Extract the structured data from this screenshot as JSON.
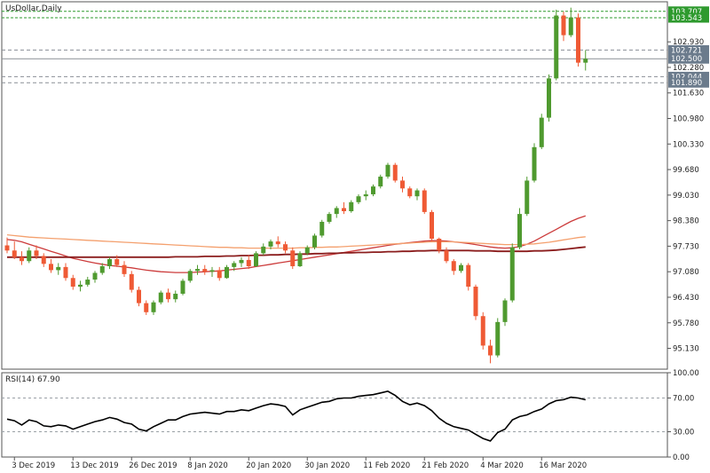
{
  "title": "UsDollar,Daily",
  "colors": {
    "bull": "#4f9a2f",
    "bear": "#ef5a35",
    "frame": "#555555",
    "ma_fast": "#cc3b3b",
    "ma_mid": "#f4a06e",
    "ma_slow": "#8b1d1d",
    "green_tag": "#2e9a2e",
    "gray_tag": "#6b7b8c",
    "rsi_line": "#000000"
  },
  "chart_data": [
    {
      "type": "candlestick",
      "name": "price",
      "price_axis": {
        "min": 94.6,
        "max": 103.95,
        "ticks": [
          "102.930",
          "102.280",
          "101.630",
          "100.980",
          "100.330",
          "99.680",
          "99.030",
          "98.380",
          "97.730",
          "97.080",
          "96.430",
          "95.780",
          "95.130"
        ]
      },
      "price_tags": [
        {
          "value": 103.707,
          "label": "103.707",
          "style": "green",
          "line": "green-dashed"
        },
        {
          "value": 103.543,
          "label": "103.543",
          "style": "green",
          "line": "green-dashed"
        },
        {
          "value": 102.721,
          "label": "102.721",
          "style": "gray",
          "line": "gray-dashed"
        },
        {
          "value": 102.5,
          "label": "102.500",
          "style": "gray",
          "line": "gray-solid"
        },
        {
          "value": 102.044,
          "label": "102.044",
          "style": "gray",
          "line": "gray-dashed"
        },
        {
          "value": 101.89,
          "label": "101.890",
          "style": "gray",
          "line": "gray-dashed"
        }
      ],
      "dates": [
        "3 Dec 2019",
        "13 Dec 2019",
        "26 Dec 2019",
        "8 Jan 2020",
        "20 Jan 2020",
        "30 Jan 2020",
        "11 Feb 2020",
        "21 Feb 2020",
        "4 Mar 2020",
        "16 Mar 2020"
      ],
      "date_index": [
        1,
        9,
        17,
        25,
        33,
        41,
        49,
        57,
        65,
        73
      ],
      "ohlc": [
        [
          97.75,
          97.95,
          97.55,
          97.62
        ],
        [
          97.62,
          97.85,
          97.4,
          97.45
        ],
        [
          97.45,
          97.6,
          97.25,
          97.35
        ],
        [
          97.35,
          97.7,
          97.3,
          97.62
        ],
        [
          97.62,
          97.75,
          97.4,
          97.48
        ],
        [
          97.48,
          97.55,
          97.2,
          97.28
        ],
        [
          97.28,
          97.4,
          97.05,
          97.12
        ],
        [
          97.12,
          97.3,
          97.0,
          97.2
        ],
        [
          97.2,
          97.3,
          96.85,
          96.92
        ],
        [
          96.92,
          97.0,
          96.62,
          96.7
        ],
        [
          96.7,
          96.85,
          96.58,
          96.75
        ],
        [
          96.75,
          96.95,
          96.7,
          96.88
        ],
        [
          96.88,
          97.1,
          96.8,
          97.05
        ],
        [
          97.05,
          97.3,
          97.0,
          97.22
        ],
        [
          97.22,
          97.45,
          97.15,
          97.4
        ],
        [
          97.4,
          97.5,
          97.2,
          97.25
        ],
        [
          97.25,
          97.35,
          96.95,
          97.02
        ],
        [
          97.02,
          97.1,
          96.55,
          96.62
        ],
        [
          96.62,
          96.7,
          96.2,
          96.28
        ],
        [
          96.28,
          96.35,
          95.98,
          96.05
        ],
        [
          96.05,
          96.35,
          95.98,
          96.3
        ],
        [
          96.3,
          96.6,
          96.25,
          96.55
        ],
        [
          96.55,
          96.65,
          96.3,
          96.38
        ],
        [
          96.38,
          96.6,
          96.3,
          96.52
        ],
        [
          96.52,
          96.9,
          96.48,
          96.85
        ],
        [
          96.85,
          97.15,
          96.8,
          97.1
        ],
        [
          97.1,
          97.25,
          97.0,
          97.15
        ],
        [
          97.15,
          97.25,
          97.0,
          97.08
        ],
        [
          97.08,
          97.2,
          96.95,
          97.12
        ],
        [
          97.12,
          97.2,
          96.85,
          96.92
        ],
        [
          96.92,
          97.25,
          96.9,
          97.2
        ],
        [
          97.2,
          97.35,
          97.1,
          97.3
        ],
        [
          97.3,
          97.45,
          97.2,
          97.38
        ],
        [
          97.38,
          97.5,
          97.15,
          97.22
        ],
        [
          97.22,
          97.6,
          97.2,
          97.55
        ],
        [
          97.55,
          97.8,
          97.5,
          97.72
        ],
        [
          97.72,
          97.9,
          97.65,
          97.85
        ],
        [
          97.85,
          97.98,
          97.7,
          97.78
        ],
        [
          97.78,
          97.85,
          97.55,
          97.62
        ],
        [
          97.62,
          97.7,
          97.15,
          97.22
        ],
        [
          97.22,
          97.6,
          97.2,
          97.55
        ],
        [
          97.55,
          97.75,
          97.5,
          97.7
        ],
        [
          97.7,
          98.05,
          97.65,
          98.0
        ],
        [
          98.0,
          98.4,
          97.95,
          98.35
        ],
        [
          98.35,
          98.6,
          98.3,
          98.55
        ],
        [
          98.55,
          98.75,
          98.45,
          98.7
        ],
        [
          98.7,
          98.85,
          98.55,
          98.62
        ],
        [
          98.62,
          98.9,
          98.58,
          98.85
        ],
        [
          98.85,
          99.05,
          98.8,
          99.0
        ],
        [
          99.0,
          99.15,
          98.9,
          99.05
        ],
        [
          99.05,
          99.3,
          99.0,
          99.25
        ],
        [
          99.25,
          99.55,
          99.2,
          99.5
        ],
        [
          99.5,
          99.85,
          99.45,
          99.8
        ],
        [
          99.8,
          99.85,
          99.35,
          99.4
        ],
        [
          99.4,
          99.5,
          99.1,
          99.2
        ],
        [
          99.2,
          99.25,
          98.95,
          99.0
        ],
        [
          99.0,
          99.2,
          98.9,
          99.15
        ],
        [
          99.15,
          99.2,
          98.55,
          98.6
        ],
        [
          98.6,
          98.65,
          97.85,
          97.92
        ],
        [
          97.92,
          97.95,
          97.55,
          97.62
        ],
        [
          97.62,
          97.7,
          97.3,
          97.35
        ],
        [
          97.35,
          97.4,
          97.0,
          97.1
        ],
        [
          97.1,
          97.3,
          97.05,
          97.25
        ],
        [
          97.25,
          97.3,
          96.6,
          96.7
        ],
        [
          96.7,
          96.75,
          95.85,
          95.95
        ],
        [
          95.95,
          96.05,
          95.1,
          95.2
        ],
        [
          95.2,
          95.35,
          94.75,
          94.95
        ],
        [
          94.95,
          95.9,
          94.9,
          95.8
        ],
        [
          95.8,
          96.4,
          95.7,
          96.35
        ],
        [
          96.35,
          97.8,
          96.3,
          97.7
        ],
        [
          97.7,
          98.7,
          97.65,
          98.55
        ],
        [
          98.55,
          99.5,
          98.5,
          99.4
        ],
        [
          99.4,
          100.35,
          99.35,
          100.25
        ],
        [
          100.25,
          101.1,
          100.2,
          101.0
        ],
        [
          101.0,
          102.1,
          100.9,
          102.0
        ],
        [
          102.0,
          103.75,
          101.95,
          103.6
        ],
        [
          103.6,
          103.7,
          102.95,
          103.1
        ],
        [
          103.1,
          103.8,
          103.05,
          103.55
        ],
        [
          103.55,
          103.65,
          102.3,
          102.4
        ],
        [
          102.4,
          102.72,
          102.2,
          102.5
        ]
      ],
      "moving_averages": [
        {
          "color_key": "ma_fast",
          "values": [
            97.9,
            97.88,
            97.84,
            97.78,
            97.72,
            97.66,
            97.6,
            97.54,
            97.48,
            97.42,
            97.38,
            97.34,
            97.3,
            97.27,
            97.24,
            97.22,
            97.2,
            97.18,
            97.15,
            97.12,
            97.1,
            97.08,
            97.07,
            97.06,
            97.06,
            97.06,
            97.07,
            97.08,
            97.09,
            97.1,
            97.12,
            97.14,
            97.16,
            97.18,
            97.21,
            97.24,
            97.27,
            97.3,
            97.33,
            97.36,
            97.39,
            97.42,
            97.45,
            97.48,
            97.51,
            97.54,
            97.57,
            97.6,
            97.63,
            97.66,
            97.69,
            97.72,
            97.75,
            97.78,
            97.8,
            97.82,
            97.84,
            97.86,
            97.87,
            97.87,
            97.86,
            97.84,
            97.82,
            97.8,
            97.77,
            97.74,
            97.71,
            97.69,
            97.68,
            97.69,
            97.72,
            97.78,
            97.86,
            97.96,
            98.06,
            98.16,
            98.26,
            98.36,
            98.44,
            98.5
          ]
        },
        {
          "color_key": "ma_mid",
          "values": [
            98.02,
            98.0,
            97.98,
            97.96,
            97.95,
            97.94,
            97.93,
            97.92,
            97.91,
            97.9,
            97.89,
            97.88,
            97.87,
            97.86,
            97.85,
            97.84,
            97.83,
            97.82,
            97.81,
            97.8,
            97.79,
            97.78,
            97.77,
            97.76,
            97.75,
            97.74,
            97.73,
            97.72,
            97.71,
            97.7,
            97.7,
            97.69,
            97.69,
            97.68,
            97.68,
            97.68,
            97.68,
            97.68,
            97.68,
            97.68,
            97.69,
            97.69,
            97.7,
            97.7,
            97.71,
            97.71,
            97.72,
            97.73,
            97.74,
            97.75,
            97.76,
            97.77,
            97.78,
            97.79,
            97.8,
            97.81,
            97.82,
            97.83,
            97.84,
            97.84,
            97.84,
            97.84,
            97.83,
            97.82,
            97.81,
            97.8,
            97.79,
            97.78,
            97.77,
            97.77,
            97.77,
            97.78,
            97.79,
            97.81,
            97.83,
            97.86,
            97.89,
            97.92,
            97.95,
            97.97
          ]
        },
        {
          "color_key": "ma_slow",
          "values": [
            97.45,
            97.45,
            97.45,
            97.45,
            97.45,
            97.45,
            97.45,
            97.45,
            97.45,
            97.45,
            97.45,
            97.45,
            97.45,
            97.45,
            97.45,
            97.45,
            97.45,
            97.45,
            97.45,
            97.45,
            97.45,
            97.45,
            97.45,
            97.46,
            97.46,
            97.46,
            97.46,
            97.47,
            97.47,
            97.47,
            97.48,
            97.48,
            97.49,
            97.49,
            97.5,
            97.5,
            97.51,
            97.51,
            97.52,
            97.52,
            97.53,
            97.53,
            97.54,
            97.54,
            97.55,
            97.55,
            97.56,
            97.56,
            97.57,
            97.57,
            97.58,
            97.58,
            97.59,
            97.59,
            97.6,
            97.6,
            97.61,
            97.61,
            97.62,
            97.62,
            97.62,
            97.62,
            97.62,
            97.62,
            97.61,
            97.61,
            97.61,
            97.6,
            97.6,
            97.6,
            97.6,
            97.6,
            97.61,
            97.61,
            97.62,
            97.63,
            97.65,
            97.67,
            97.69,
            97.71
          ]
        }
      ]
    },
    {
      "type": "line",
      "name": "RSI(14)",
      "label": "RSI(14) 67.90",
      "ylim": [
        0,
        100
      ],
      "ticks": [
        "100.00",
        "70.00",
        "30.00",
        "0.00"
      ],
      "levels": [
        70,
        30
      ],
      "values": [
        45,
        43,
        38,
        44,
        42,
        37,
        36,
        38,
        37,
        33,
        36,
        39,
        42,
        44,
        47,
        45,
        41,
        39,
        33,
        31,
        36,
        40,
        44,
        44,
        48,
        51,
        52,
        53,
        52,
        51,
        54,
        54,
        56,
        55,
        58,
        61,
        63,
        62,
        60,
        50,
        56,
        59,
        62,
        65,
        66,
        69,
        70,
        70,
        72,
        73,
        74,
        76,
        78,
        73,
        66,
        62,
        64,
        61,
        55,
        46,
        40,
        36,
        34,
        32,
        27,
        22,
        19,
        29,
        33,
        44,
        48,
        50,
        54,
        57,
        63,
        67,
        68,
        71,
        70,
        67.9
      ]
    }
  ]
}
